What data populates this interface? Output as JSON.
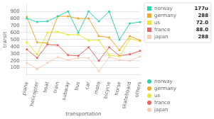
{
  "chart_data": {
    "type": "line",
    "categories": [
      "plane",
      "helicopter",
      "boat",
      "train",
      "subway",
      "bus",
      "car",
      "moto",
      "bicycle",
      "horse",
      "skateboard",
      "others"
    ],
    "series": [
      {
        "name": "norway",
        "color": "#26d7ae",
        "values": [
          800,
          750,
          760,
          830,
          900,
          600,
          900,
          760,
          900,
          500,
          730,
          750
        ]
      },
      {
        "name": "germany",
        "color": "#f5a623",
        "values": [
          820,
          460,
          450,
          830,
          830,
          800,
          800,
          550,
          530,
          350,
          550,
          490
        ]
      },
      {
        "name": "us",
        "color": "#e8e830",
        "values": [
          460,
          290,
          600,
          610,
          570,
          570,
          490,
          490,
          280,
          260,
          510,
          480
        ]
      },
      {
        "name": "france",
        "color": "#f06060",
        "values": [
          360,
          240,
          430,
          420,
          280,
          270,
          390,
          200,
          390,
          270,
          290,
          340
        ]
      },
      {
        "name": "japan",
        "color": "#f5cdb4",
        "values": [
          170,
          80,
          170,
          250,
          210,
          240,
          240,
          50,
          250,
          210,
          200,
          260
        ]
      }
    ],
    "xlabel": "transportation",
    "ylabel": "transit",
    "ylim": [
      0,
      1000
    ],
    "yticks": [
      100,
      200,
      300,
      400,
      500,
      600,
      700,
      800,
      900
    ],
    "grid": true,
    "marker": "circle",
    "legend": "right",
    "annotations": [
      {
        "name": "norway",
        "color": "#26d7ae",
        "text": "177u"
      },
      {
        "name": "germany",
        "color": "#f5a623",
        "text": "288"
      },
      {
        "name": "us",
        "color": "#e8e830",
        "text": "72.0"
      },
      {
        "name": "france",
        "color": "#f06060",
        "text": "88.0"
      },
      {
        "name": "japan",
        "color": "#f5cdb4",
        "text": "288"
      }
    ]
  }
}
